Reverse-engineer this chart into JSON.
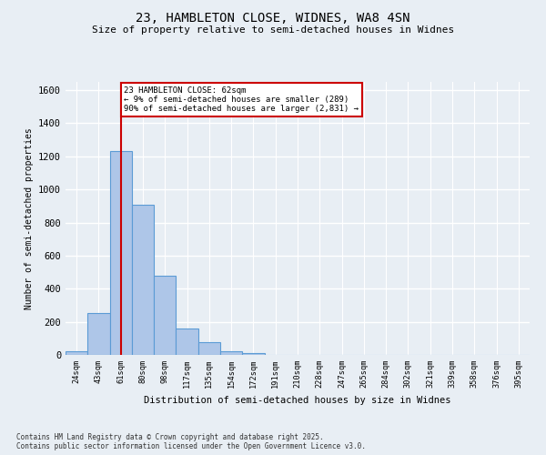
{
  "title1": "23, HAMBLETON CLOSE, WIDNES, WA8 4SN",
  "title2": "Size of property relative to semi-detached houses in Widnes",
  "xlabel": "Distribution of semi-detached houses by size in Widnes",
  "ylabel": "Number of semi-detached properties",
  "bins": [
    "24sqm",
    "43sqm",
    "61sqm",
    "80sqm",
    "98sqm",
    "117sqm",
    "135sqm",
    "154sqm",
    "172sqm",
    "191sqm",
    "210sqm",
    "228sqm",
    "247sqm",
    "265sqm",
    "284sqm",
    "302sqm",
    "321sqm",
    "339sqm",
    "358sqm",
    "376sqm",
    "395sqm"
  ],
  "values": [
    20,
    255,
    1230,
    910,
    480,
    160,
    75,
    20,
    10,
    0,
    0,
    0,
    0,
    0,
    0,
    0,
    0,
    0,
    0,
    0,
    0
  ],
  "bar_color": "#aec6e8",
  "bar_edge_color": "#5b9bd5",
  "property_bin_index": 2,
  "annotation_title": "23 HAMBLETON CLOSE: 62sqm",
  "annotation_line1": "← 9% of semi-detached houses are smaller (289)",
  "annotation_line2": "90% of semi-detached houses are larger (2,831) →",
  "vline_color": "#cc0000",
  "annotation_box_color": "#cc0000",
  "background_color": "#e8eef4",
  "grid_color": "#ffffff",
  "footer1": "Contains HM Land Registry data © Crown copyright and database right 2025.",
  "footer2": "Contains public sector information licensed under the Open Government Licence v3.0.",
  "ylim": [
    0,
    1650
  ],
  "yticks": [
    0,
    200,
    400,
    600,
    800,
    1000,
    1200,
    1400,
    1600
  ]
}
